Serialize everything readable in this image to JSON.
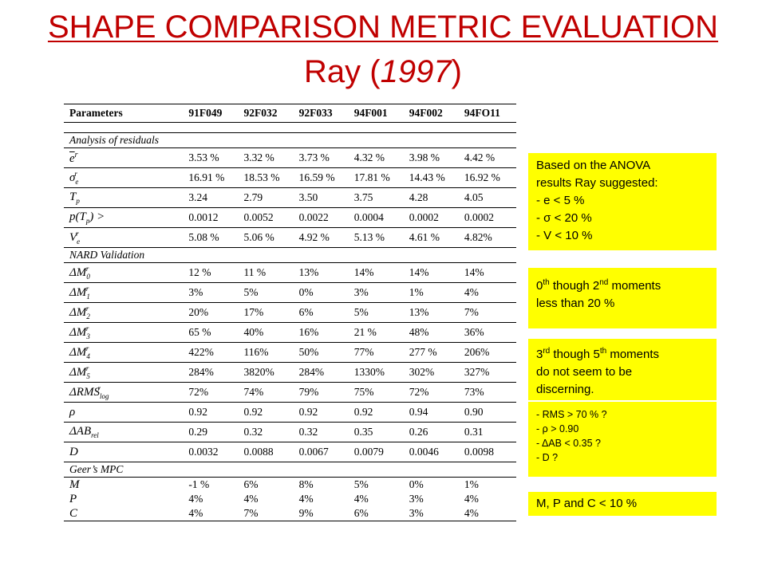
{
  "title": {
    "line1": "SHAPE COMPARISON METRIC EVALUATION",
    "line2_prefix": "Ray (",
    "line2_year": "1997",
    "line2_suffix": ")"
  },
  "table": {
    "headers": [
      "Parameters",
      "91F049",
      "92F032",
      "92F033",
      "94F001",
      "94F002",
      "94FO11"
    ],
    "sections": {
      "residuals": "Analysis of residuals",
      "nard": "NARD Validation",
      "geer": "Geer’s MPC"
    },
    "rows": {
      "e_bar": [
        "3.53 %",
        "3.32 %",
        "3.73 %",
        "4.32 %",
        "3.98 %",
        "4.42 %"
      ],
      "sigma_e": [
        "16.91 %",
        "18.53 %",
        "16.59 %",
        "17.81 %",
        "14.43 %",
        "16.92 %"
      ],
      "t_p": [
        "3.24",
        "2.79",
        "3.50",
        "3.75",
        "4.28",
        "4.05"
      ],
      "p_tp": [
        "0.0012",
        "0.0052",
        "0.0022",
        "0.0004",
        "0.0002",
        "0.0002"
      ],
      "v_e": [
        "5.08 %",
        "5.06 %",
        "4.92 %",
        "5.13 %",
        "4.61 %",
        "4.82%"
      ],
      "dm0": [
        "12 %",
        "11 %",
        "13%",
        "14%",
        "14%",
        "14%"
      ],
      "dm1": [
        "3%",
        "5%",
        "0%",
        "3%",
        "1%",
        "4%"
      ],
      "dm2": [
        "20%",
        "17%",
        "6%",
        "5%",
        "13%",
        "7%"
      ],
      "dm3": [
        "65 %",
        "40%",
        "16%",
        "21 %",
        "48%",
        "36%"
      ],
      "dm4": [
        "422%",
        "116%",
        "50%",
        "77%",
        "277 %",
        "206%"
      ],
      "dm5": [
        "284%",
        "3820%",
        "284%",
        "1330%",
        "302%",
        "327%"
      ],
      "drms": [
        "72%",
        "74%",
        "79%",
        "75%",
        "72%",
        "73%"
      ],
      "rho": [
        "0.92",
        "0.92",
        "0.92",
        "0.92",
        "0.94",
        "0.90"
      ],
      "dab": [
        "0.29",
        "0.32",
        "0.32",
        "0.35",
        "0.26",
        "0.31"
      ],
      "d": [
        "0.0032",
        "0.0088",
        "0.0067",
        "0.0079",
        "0.0046",
        "0.0098"
      ],
      "m": [
        "-1 %",
        "6%",
        "8%",
        "5%",
        "0%",
        "1%"
      ],
      "p": [
        "4%",
        "4%",
        "4%",
        "4%",
        "3%",
        "4%"
      ],
      "c": [
        "4%",
        "7%",
        "9%",
        "6%",
        "3%",
        "4%"
      ]
    },
    "labels": {
      "m": "M",
      "p": "P",
      "c": "C",
      "d": "D",
      "rho": "ρ"
    }
  },
  "notes": {
    "box1": [
      "Based on the ANOVA",
      "results Ray suggested:",
      "- e < 5 %",
      "- σ < 20 %",
      "- V < 10 %"
    ],
    "box2": {
      "a": "0",
      "a_sup": "th",
      "b": " though 2",
      "b_sup": "nd",
      "c": " moments",
      "line2": "less than 20 %"
    },
    "box3": {
      "a": "3",
      "a_sup": "rd",
      "b": " though 5",
      "b_sup": "th",
      "c": " moments",
      "line2": "do not seem to be",
      "line3": "discerning."
    },
    "box4": [
      "- RMS > 70 % ?",
      "- ρ > 0.90",
      "- ΔAB < 0.35 ?",
      "- D ?"
    ],
    "box5": "M, P and C < 10 %"
  },
  "colors": {
    "title": "#c00000",
    "note_bg": "#ffff00"
  }
}
